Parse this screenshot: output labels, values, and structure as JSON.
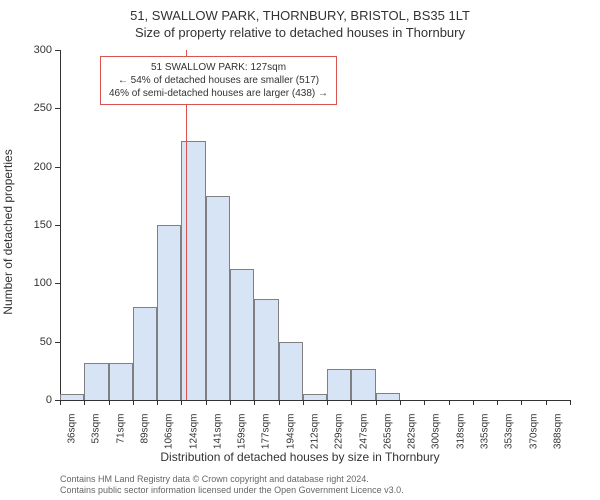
{
  "title_line1": "51, SWALLOW PARK, THORNBURY, BRISTOL, BS35 1LT",
  "title_line2": "Size of property relative to detached houses in Thornbury",
  "xlabel": "Distribution of detached houses by size in Thornbury",
  "ylabel": "Number of detached properties",
  "footer_line1": "Contains HM Land Registry data © Crown copyright and database right 2024.",
  "footer_line2": "Contains public sector information licensed under the Open Government Licence v3.0.",
  "chart": {
    "type": "histogram",
    "ylim": [
      0,
      300
    ],
    "ytick_step": 50,
    "yticks": [
      0,
      50,
      100,
      150,
      200,
      250,
      300
    ],
    "categories": [
      "36sqm",
      "53sqm",
      "71sqm",
      "89sqm",
      "106sqm",
      "124sqm",
      "141sqm",
      "159sqm",
      "177sqm",
      "194sqm",
      "212sqm",
      "229sqm",
      "247sqm",
      "265sqm",
      "282sqm",
      "300sqm",
      "318sqm",
      "335sqm",
      "353sqm",
      "370sqm",
      "388sqm"
    ],
    "values": [
      5,
      32,
      32,
      80,
      150,
      222,
      175,
      112,
      87,
      50,
      5,
      27,
      27,
      6,
      0,
      0,
      0,
      0,
      0,
      0,
      0
    ],
    "bar_fill": "#d6e4f5",
    "bar_border": "#808080",
    "bar_width_ratio": 1.0,
    "background_color": "#ffffff",
    "axis_color": "#333333",
    "label_fontsize": 12,
    "tick_fontsize": 11,
    "reference_line": {
      "index_between": 5,
      "color": "#d9534f"
    },
    "annotation": {
      "border_color": "#d9534f",
      "lines": [
        "51 SWALLOW PARK: 127sqm",
        "← 54% of detached houses are smaller (517)",
        "46% of semi-detached houses are larger (438) →"
      ]
    }
  }
}
